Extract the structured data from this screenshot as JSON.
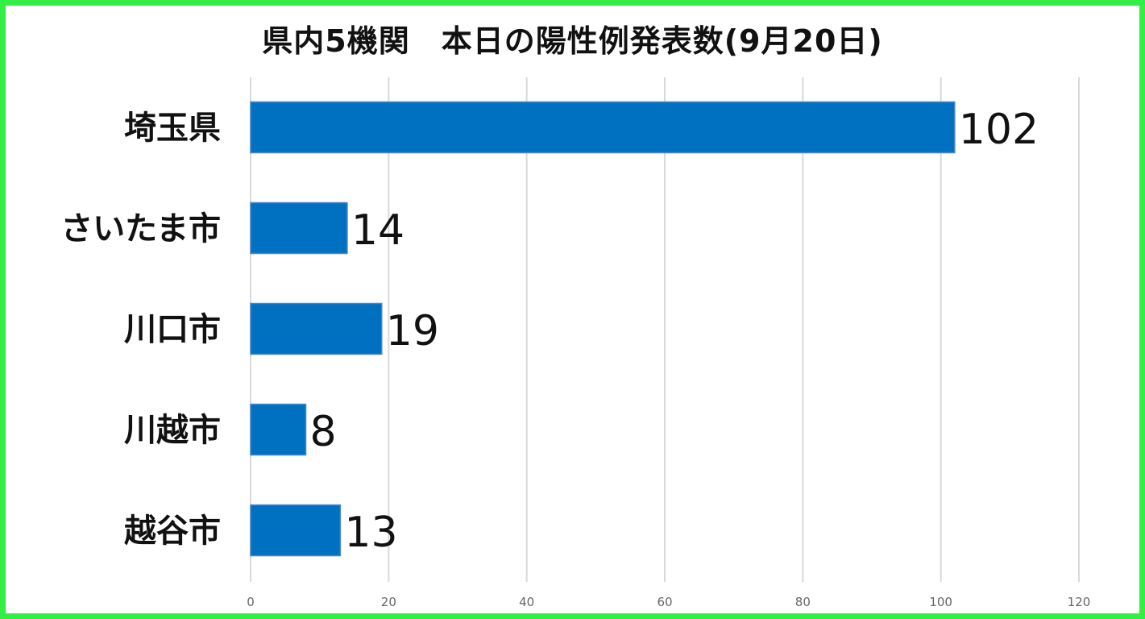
{
  "chart_data": {
    "type": "bar",
    "orientation": "horizontal",
    "title": "県内5機関　本日の陽性例発表数(9月20日)",
    "categories": [
      "埼玉県",
      "さいたま市",
      "川口市",
      "川越市",
      "越谷市"
    ],
    "values": [
      102,
      14,
      19,
      8,
      13
    ],
    "xlim": [
      0,
      120
    ],
    "x_ticks": [
      0,
      20,
      40,
      60,
      80,
      100,
      120
    ],
    "grid": "vertical",
    "data_labels": true,
    "legend": "none",
    "colors": {
      "bar": "#0070c0",
      "bar_border": "#4a86c8",
      "grid": "#d9d9d9",
      "frame": "#33ee44",
      "text": "#111111",
      "tick_text": "#666666"
    }
  }
}
